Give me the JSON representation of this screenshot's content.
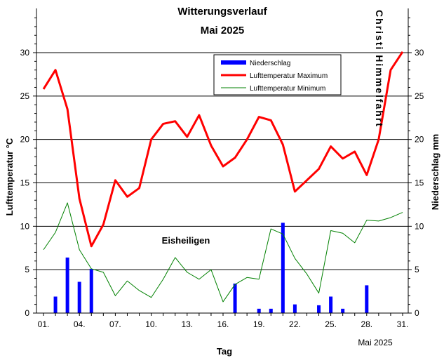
{
  "chart_data": {
    "type": "bar+line",
    "title": "Witterungsverlauf",
    "subtitle": "Mai 2025",
    "xlabel": "Tag",
    "xlabel_note": "Mai  2025",
    "ylabel_left": "Lufttemperatur °C",
    "ylabel_right": "Niederschlag  mm",
    "ylim": [
      0,
      30
    ],
    "xlim": [
      1,
      31
    ],
    "x_tick_labels": [
      "01.",
      "04.",
      "07.",
      "10.",
      "13.",
      "16.",
      "19.",
      "22.",
      "25.",
      "28.",
      "31."
    ],
    "y_ticks": [
      0,
      5,
      10,
      15,
      20,
      25,
      30
    ],
    "grid": true,
    "legend_position": "top-right",
    "days": [
      1,
      2,
      3,
      4,
      5,
      6,
      7,
      8,
      9,
      10,
      11,
      12,
      13,
      14,
      15,
      16,
      17,
      18,
      19,
      20,
      21,
      22,
      23,
      24,
      25,
      26,
      27,
      28,
      29,
      30,
      31
    ],
    "series": [
      {
        "name": "Niederschlag",
        "type": "bar",
        "color": "#0000ff",
        "values": [
          0,
          1.9,
          6.4,
          3.6,
          5.1,
          0,
          0,
          0,
          0,
          0,
          0,
          0,
          0,
          0,
          0,
          0,
          3.4,
          0,
          0.5,
          0.5,
          10.4,
          1.0,
          0,
          0.9,
          1.9,
          0.5,
          0,
          3.2,
          0,
          0,
          0
        ]
      },
      {
        "name": "Lufttemperatur Maximum",
        "type": "line",
        "color": "#ff0000",
        "values": [
          25.8,
          28.0,
          23.5,
          13.2,
          7.7,
          10.2,
          15.3,
          13.4,
          14.4,
          20.0,
          21.8,
          22.1,
          20.3,
          22.8,
          19.3,
          16.9,
          17.9,
          20.0,
          22.6,
          22.2,
          19.4,
          14.0,
          15.3,
          16.6,
          19.2,
          17.8,
          18.6,
          15.9,
          20.0,
          28.0,
          30.1
        ]
      },
      {
        "name": "Lufttemperatur Minimum",
        "type": "line",
        "color": "#008000",
        "values": [
          7.3,
          9.3,
          12.7,
          7.3,
          5.1,
          4.7,
          2.0,
          3.7,
          2.6,
          1.8,
          3.9,
          6.4,
          4.7,
          3.9,
          5.0,
          1.3,
          3.3,
          4.1,
          3.9,
          9.7,
          9.1,
          6.3,
          4.5,
          2.3,
          9.5,
          9.2,
          8.1,
          10.7,
          10.6,
          11.0,
          11.6
        ]
      }
    ],
    "annotations": [
      {
        "text": "Eisheiligen"
      },
      {
        "text": "Christi  Himmelfahrt"
      }
    ]
  }
}
